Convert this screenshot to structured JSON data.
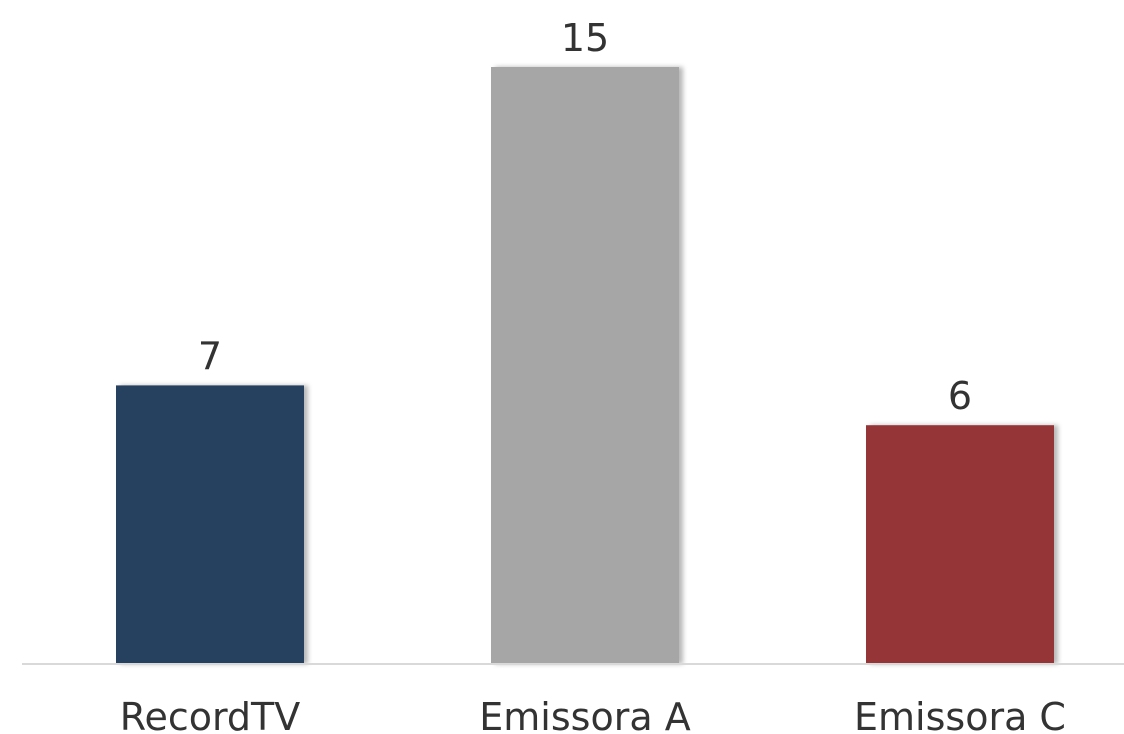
{
  "chart_data": {
    "type": "bar",
    "categories": [
      "RecordTV",
      "Emissora A",
      "Emissora C"
    ],
    "values": [
      7,
      15,
      6
    ],
    "colors": [
      "#263f5f",
      "#a6a6a6",
      "#953637"
    ],
    "title": "",
    "xlabel": "",
    "ylabel": "",
    "ylim": [
      0,
      15
    ],
    "grid": false,
    "legend": "none",
    "data_labels": true
  }
}
